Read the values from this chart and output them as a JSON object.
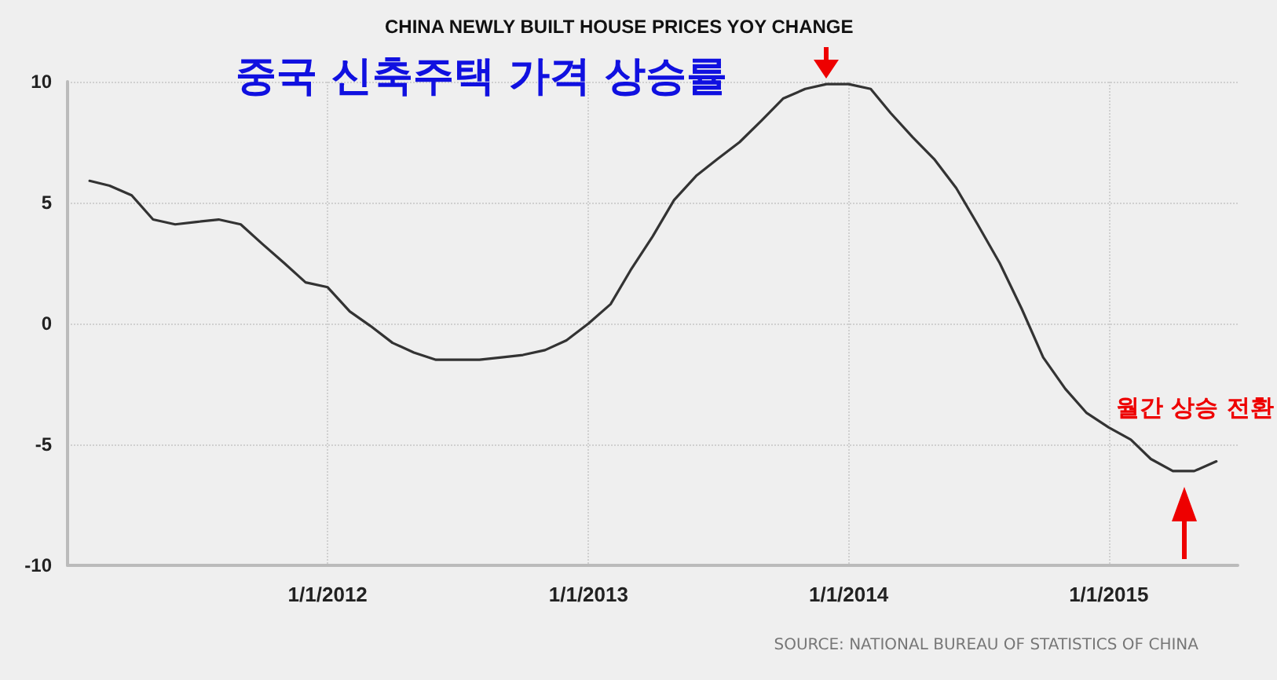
{
  "chart_data": {
    "type": "line",
    "title": "CHINA NEWLY BUILT HOUSE PRICES YOY CHANGE",
    "subtitle": "중국 신축주택 가격 상승률",
    "x": [
      "2011-02",
      "2011-03",
      "2011-04",
      "2011-05",
      "2011-06",
      "2011-07",
      "2011-08",
      "2011-09",
      "2011-10",
      "2011-11",
      "2011-12",
      "2012-01",
      "2012-02",
      "2012-03",
      "2012-04",
      "2012-05",
      "2012-06",
      "2012-07",
      "2012-08",
      "2012-09",
      "2012-10",
      "2012-11",
      "2012-12",
      "2013-01",
      "2013-02",
      "2013-03",
      "2013-04",
      "2013-05",
      "2013-06",
      "2013-07",
      "2013-08",
      "2013-09",
      "2013-10",
      "2013-11",
      "2013-12",
      "2014-01",
      "2014-02",
      "2014-03",
      "2014-04",
      "2014-05",
      "2014-06",
      "2014-07",
      "2014-08",
      "2014-09",
      "2014-10",
      "2014-11",
      "2014-12",
      "2015-01",
      "2015-02",
      "2015-03",
      "2015-04",
      "2015-05",
      "2015-06"
    ],
    "series": [
      {
        "color": "#333333",
        "values": [
          5.9,
          5.7,
          5.3,
          4.3,
          4.1,
          4.2,
          4.3,
          4.1,
          3.3,
          2.5,
          1.7,
          1.5,
          0.5,
          -0.1,
          -0.8,
          -1.2,
          -1.5,
          -1.5,
          -1.5,
          -1.4,
          -1.3,
          -1.1,
          -0.7,
          0.0,
          0.8,
          2.2,
          3.6,
          5.1,
          6.1,
          6.8,
          7.5,
          8.4,
          9.3,
          9.7,
          9.9,
          9.9,
          9.7,
          8.7,
          7.7,
          6.8,
          5.6,
          4.1,
          2.5,
          0.6,
          -1.4,
          -2.7,
          -3.7,
          -4.3,
          -4.8,
          -5.6,
          -6.1,
          -6.1,
          -5.7
        ]
      }
    ],
    "xlim": [
      "2011-01-01",
      "2015-07-01"
    ],
    "xticks": [
      {
        "value": "2012-01-01",
        "label": "1/1/2012"
      },
      {
        "value": "2013-01-01",
        "label": "1/1/2013"
      },
      {
        "value": "2014-01-01",
        "label": "1/1/2014"
      },
      {
        "value": "2015-01-01",
        "label": "1/1/2015"
      }
    ],
    "ylim": [
      -10,
      10
    ],
    "yticks": [
      -10,
      -5,
      0,
      5,
      10
    ],
    "grid": true,
    "annotations": [
      {
        "text": "월간 상승 전환",
        "x": "2015-05",
        "y": -6.1
      },
      "SOURCE: NATIONAL BUREAU OF STATISTICS OF CHINA"
    ]
  }
}
